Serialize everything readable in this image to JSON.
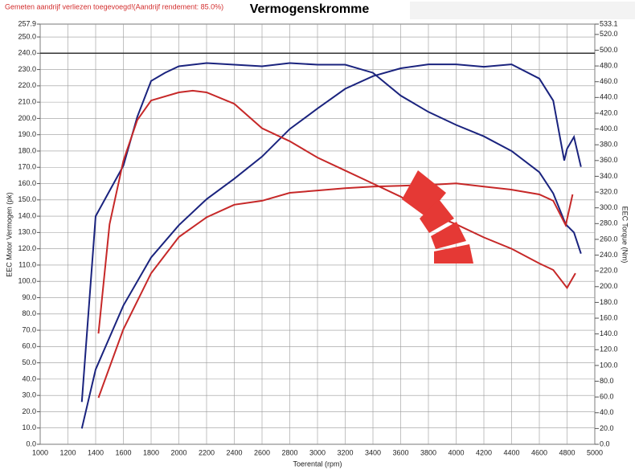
{
  "chart_data": {
    "type": "line",
    "title": "Vermogenskromme",
    "subtitle": "Gemeten aandrijf verliezen toegevoegd!(Aandrijf rendement: 85.0%)",
    "x_label": "Toerental (rpm)",
    "y_label": "EEC Motor Vermogen (pk)",
    "y2_label": "EEC Torque (Nm)",
    "grid": true,
    "reference_line": 240,
    "xlim": [
      1000,
      5000
    ],
    "xticks": [
      1000,
      1200,
      1400,
      1600,
      1800,
      2000,
      2200,
      2400,
      2600,
      2800,
      3000,
      3200,
      3400,
      3600,
      3800,
      4000,
      4200,
      4400,
      4600,
      4800,
      5000
    ],
    "ylim": [
      0,
      257.9
    ],
    "yticks": [
      {
        "value": 0,
        "label": "0.0"
      },
      {
        "value": 10,
        "label": "10.0"
      },
      {
        "value": 20,
        "label": "20.0"
      },
      {
        "value": 30,
        "label": "30.0"
      },
      {
        "value": 40,
        "label": "40.0"
      },
      {
        "value": 50,
        "label": "50.0"
      },
      {
        "value": 60,
        "label": "60.0"
      },
      {
        "value": 70,
        "label": "70.0"
      },
      {
        "value": 80,
        "label": "80.0"
      },
      {
        "value": 90,
        "label": "90.0"
      },
      {
        "value": 100,
        "label": "100.0"
      },
      {
        "value": 110,
        "label": "110.0"
      },
      {
        "value": 120,
        "label": "120.0"
      },
      {
        "value": 130,
        "label": "130.0"
      },
      {
        "value": 140,
        "label": "140.0"
      },
      {
        "value": 150,
        "label": "150.0"
      },
      {
        "value": 160,
        "label": "160.0"
      },
      {
        "value": 170,
        "label": "170.0"
      },
      {
        "value": 180,
        "label": "180.0"
      },
      {
        "value": 190,
        "label": "190.0"
      },
      {
        "value": 200,
        "label": "200.0"
      },
      {
        "value": 210,
        "label": "210.0"
      },
      {
        "value": 220,
        "label": "220.0"
      },
      {
        "value": 230,
        "label": "230.0"
      },
      {
        "value": 240,
        "label": "240.0"
      },
      {
        "value": 250,
        "label": "250.0"
      },
      257.9
    ],
    "y2lim": [
      0,
      533.1
    ],
    "y2ticks": [
      {
        "value": 0,
        "label": "0.0"
      },
      {
        "value": 20,
        "label": "20.0"
      },
      {
        "value": 40,
        "label": "40.0"
      },
      {
        "value": 60,
        "label": "60.0"
      },
      {
        "value": 80,
        "label": "80.0"
      },
      {
        "value": 100,
        "label": "100.0"
      },
      {
        "value": 120,
        "label": "120.0"
      },
      {
        "value": 140,
        "label": "140.0"
      },
      {
        "value": 160,
        "label": "160.0"
      },
      {
        "value": 180,
        "label": "180.0"
      },
      {
        "value": 200,
        "label": "200.0"
      },
      {
        "value": 220,
        "label": "220.0"
      },
      {
        "value": 240,
        "label": "240.0"
      },
      {
        "value": 260,
        "label": "260.0"
      },
      {
        "value": 280,
        "label": "280.0"
      },
      {
        "value": 300,
        "label": "300.0"
      },
      {
        "value": 320,
        "label": "320.0"
      },
      {
        "value": 340,
        "label": "340.0"
      },
      {
        "value": 360,
        "label": "360.0"
      },
      {
        "value": 380,
        "label": "380.0"
      },
      {
        "value": 400,
        "label": "400.0"
      },
      {
        "value": 420,
        "label": "420.0"
      },
      {
        "value": 440,
        "label": "440.0"
      },
      {
        "value": 460,
        "label": "460.0"
      },
      {
        "value": 480,
        "label": "480.0"
      },
      {
        "value": 500,
        "label": "500.0"
      },
      {
        "value": 520,
        "label": "520.0"
      },
      533.1
    ],
    "series": [
      {
        "color": "#1a237e",
        "x": [
          1300,
          1400,
          1600,
          1700,
          1800,
          1900,
          2000,
          2200,
          2400,
          2600,
          2800,
          3000,
          3200,
          3400,
          3600,
          3800,
          4000,
          4200,
          4400,
          4600,
          4700,
          4790,
          4850,
          4900
        ],
        "values": [
          26,
          140,
          171,
          201,
          223,
          228,
          232,
          234,
          233,
          232,
          234,
          233,
          233,
          228,
          214,
          204,
          196,
          189,
          180,
          167,
          154,
          135,
          130,
          117
        ]
      },
      {
        "color": "#1a237e",
        "axis": "y2",
        "x": [
          1300,
          1400,
          1600,
          1800,
          2000,
          2200,
          2400,
          2600,
          2800,
          3000,
          3200,
          3400,
          3600,
          3800,
          4000,
          4200,
          4400,
          4600,
          4700,
          4780,
          4800,
          4850,
          4900
        ],
        "values": [
          20,
          95,
          176,
          237,
          278,
          311,
          337,
          365,
          400,
          426,
          451,
          467,
          477,
          482,
          482,
          479,
          482,
          464,
          436,
          360,
          375,
          390,
          352
        ]
      },
      {
        "color": "#c62828",
        "x": [
          1420,
          1500,
          1600,
          1700,
          1800,
          2000,
          2100,
          2200,
          2400,
          2600,
          2800,
          3000,
          3200,
          3400,
          3600,
          3800,
          4000,
          4200,
          4400,
          4600,
          4700,
          4800,
          4860
        ],
        "values": [
          68,
          135,
          174,
          199,
          211,
          216,
          217,
          216,
          209,
          194,
          186,
          176,
          168,
          160,
          152,
          142,
          135,
          127,
          120,
          111,
          107,
          96,
          105
        ]
      },
      {
        "color": "#c62828",
        "axis": "y2",
        "x": [
          1420,
          1600,
          1800,
          2000,
          2200,
          2400,
          2600,
          2800,
          3000,
          3200,
          3400,
          3600,
          3800,
          4000,
          4200,
          4400,
          4600,
          4700,
          4790,
          4840
        ],
        "values": [
          59,
          146,
          217,
          263,
          288,
          304,
          309,
          319,
          322,
          325,
          327,
          328,
          329,
          331,
          327,
          323,
          317,
          309,
          278,
          317
        ]
      }
    ]
  }
}
